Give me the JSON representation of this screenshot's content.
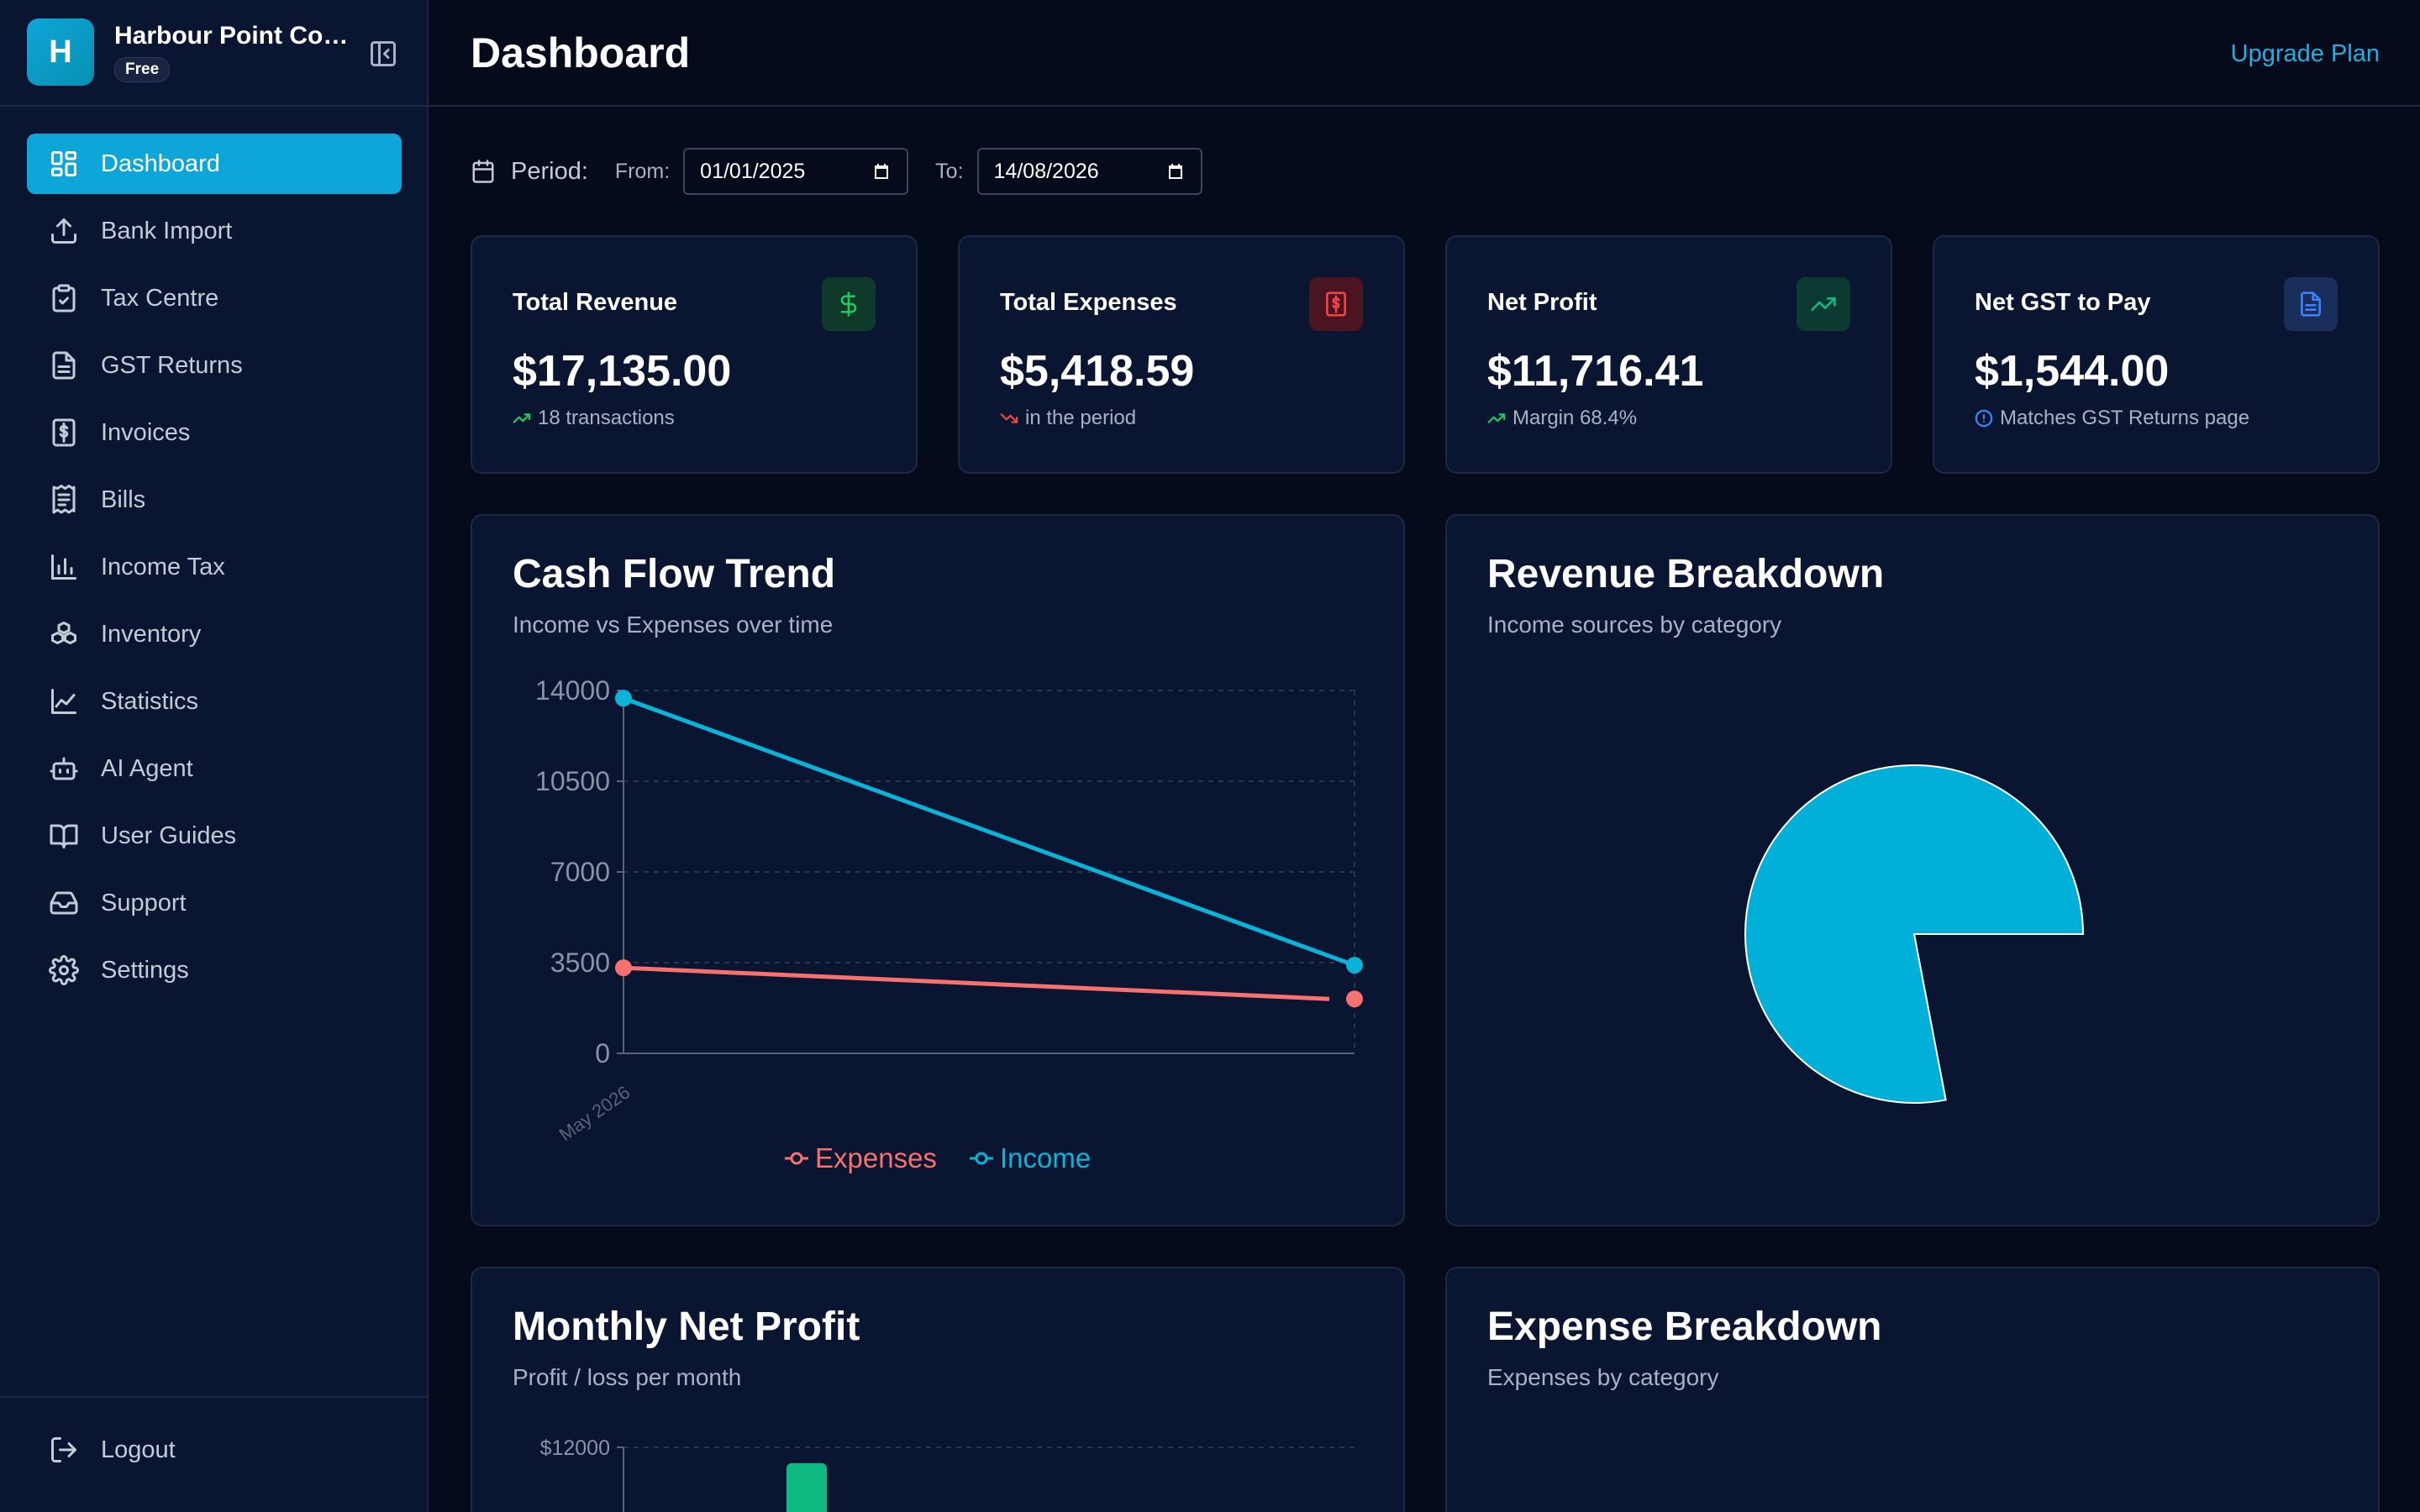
{
  "company": {
    "logo_letter": "H",
    "name": "Harbour Point Con...",
    "plan": "Free"
  },
  "nav": {
    "items": [
      {
        "label": "Dashboard",
        "icon": "grid-icon",
        "active": true
      },
      {
        "label": "Bank Import",
        "icon": "upload-icon"
      },
      {
        "label": "Tax Centre",
        "icon": "clipboard-check-icon"
      },
      {
        "label": "GST Returns",
        "icon": "document-icon"
      },
      {
        "label": "Invoices",
        "icon": "receipt-dollar-icon"
      },
      {
        "label": "Bills",
        "icon": "receipt-icon"
      },
      {
        "label": "Income Tax",
        "icon": "bar-chart-icon"
      },
      {
        "label": "Inventory",
        "icon": "boxes-icon"
      },
      {
        "label": "Statistics",
        "icon": "line-chart-icon"
      },
      {
        "label": "AI Agent",
        "icon": "bot-icon"
      },
      {
        "label": "User Guides",
        "icon": "book-open-icon"
      },
      {
        "label": "Support",
        "icon": "inbox-icon"
      },
      {
        "label": "Settings",
        "icon": "gear-icon"
      }
    ],
    "logout": "Logout"
  },
  "header": {
    "title": "Dashboard",
    "upgrade": "Upgrade Plan"
  },
  "period": {
    "label": "Period:",
    "from_label": "From:",
    "from_value": "01/01/2025",
    "to_label": "To:",
    "to_value": "14/08/2026"
  },
  "stats": [
    {
      "title": "Total Revenue",
      "value": "$17,135.00",
      "sub": "18 transactions",
      "icon": "dollar-icon",
      "accent": "#22c55e",
      "icon_bg": "#0f3a2a",
      "sub_icon": "trending-up-icon",
      "sub_color": "#22c55e"
    },
    {
      "title": "Total Expenses",
      "value": "$5,418.59",
      "sub": "in the period",
      "icon": "receipt-dollar-icon",
      "accent": "#ef4444",
      "icon_bg": "#4a1420",
      "sub_icon": "trending-down-icon",
      "sub_color": "#ef4444"
    },
    {
      "title": "Net Profit",
      "value": "$11,716.41",
      "sub": "Margin 68.4%",
      "icon": "trending-up-icon",
      "accent": "#10b981",
      "icon_bg": "#0c3a33",
      "sub_icon": "trending-up-icon",
      "sub_color": "#22c55e"
    },
    {
      "title": "Net GST to Pay",
      "value": "$1,544.00",
      "sub": "Matches GST Returns page",
      "icon": "document-icon",
      "accent": "#3b82f6",
      "icon_bg": "#1a2e5c",
      "sub_icon": "info-icon",
      "sub_color": "#3b82f6"
    }
  ],
  "cash_flow": {
    "title": "Cash Flow Trend",
    "subtitle": "Income vs Expenses over time"
  },
  "revenue_breakdown": {
    "title": "Revenue Breakdown",
    "subtitle": "Income sources by category"
  },
  "monthly_profit": {
    "title": "Monthly Net Profit",
    "subtitle": "Profit / loss per month"
  },
  "expense_breakdown": {
    "title": "Expense Breakdown",
    "subtitle": "Expenses by category"
  },
  "chart_data": [
    {
      "type": "line",
      "x": [
        "May 2026",
        ""
      ],
      "ylim": [
        0,
        14000
      ],
      "yticks": [
        "0",
        "3500",
        "7000",
        "10500",
        "14000"
      ],
      "grid": true,
      "legend": "bottom",
      "series": [
        {
          "name": "Expenses",
          "color": "#f87171",
          "values": [
            3300,
            2100
          ]
        },
        {
          "name": "Income",
          "color": "#0ab4d8",
          "values": [
            13700,
            3400
          ]
        }
      ]
    },
    {
      "type": "pie",
      "slices": [
        {
          "value": 78,
          "color": "#00b0d8"
        },
        {
          "value": 22,
          "color": "#050b1a"
        }
      ]
    },
    {
      "type": "bar",
      "yticks": [
        "$12000"
      ],
      "ylim": [
        0,
        12000
      ],
      "series": [
        {
          "values": [
            11716
          ],
          "color": "#10b981"
        }
      ]
    }
  ]
}
